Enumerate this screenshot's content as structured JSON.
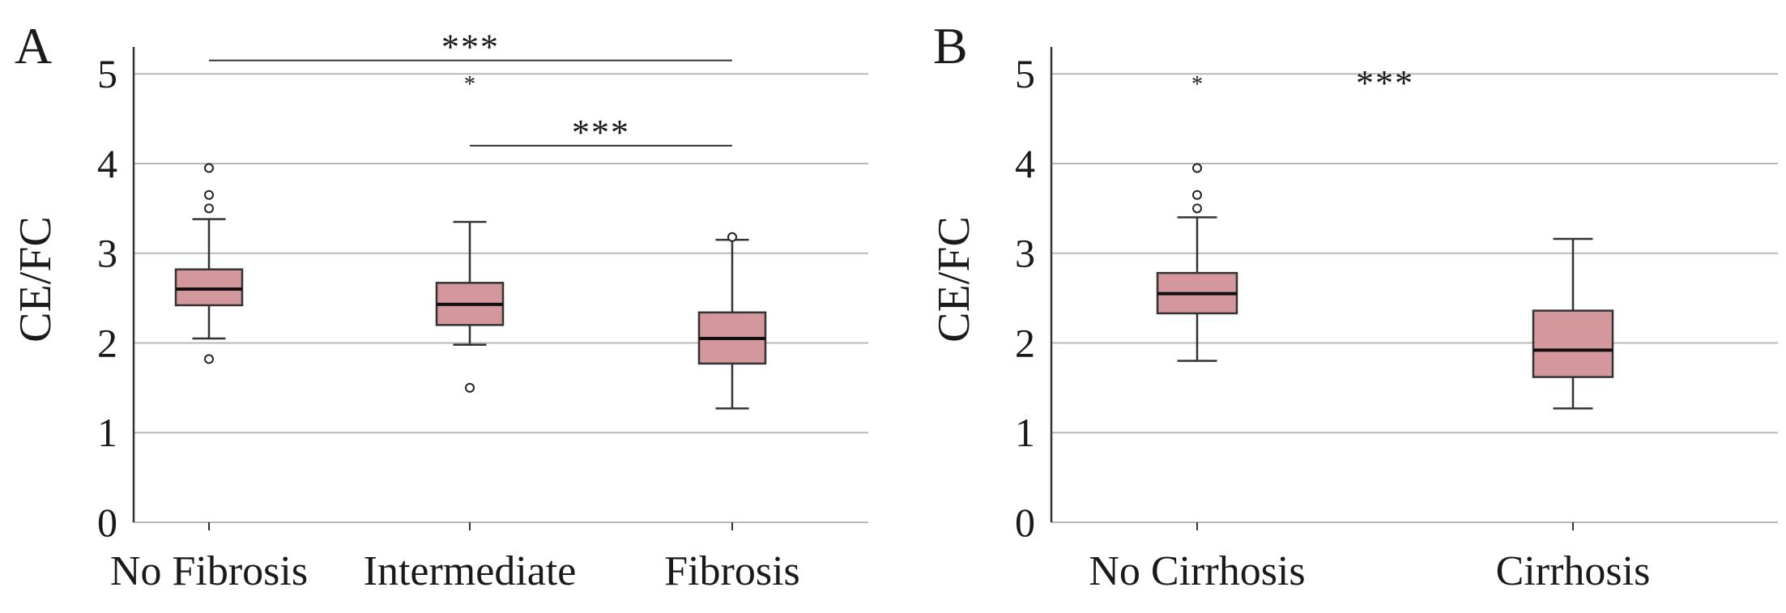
{
  "colors": {
    "box_fill": "#d4979b",
    "box_stroke": "#333333",
    "gridline": "#b8b8b8",
    "axis": "#333333"
  },
  "chart_data": [
    {
      "type": "boxplot",
      "panel_label": "A",
      "ylabel": "CE/FC",
      "xlabel": "",
      "ylim": [
        0,
        5.3
      ],
      "yticks": [
        0,
        1,
        2,
        3,
        4,
        5
      ],
      "grid": true,
      "categories": [
        "No Fibrosis",
        "Intermediate",
        "Fibrosis"
      ],
      "boxes": [
        {
          "category": "No Fibrosis",
          "whisker_low": 2.05,
          "q1": 2.42,
          "median": 2.6,
          "q3": 2.82,
          "whisker_high": 3.38,
          "outliers": [
            1.82,
            3.5,
            3.65,
            3.95
          ],
          "extremes": []
        },
        {
          "category": "Intermediate",
          "whisker_low": 1.98,
          "q1": 2.2,
          "median": 2.43,
          "q3": 2.67,
          "whisker_high": 3.35,
          "outliers": [
            1.5
          ],
          "extremes": [
            4.93
          ]
        },
        {
          "category": "Fibrosis",
          "whisker_low": 1.27,
          "q1": 1.77,
          "median": 2.05,
          "q3": 2.34,
          "whisker_high": 3.15,
          "outliers": [
            3.18
          ],
          "extremes": []
        }
      ],
      "significance": [
        {
          "from": "No Fibrosis",
          "to": "Fibrosis",
          "label": "***",
          "y": 5.15
        },
        {
          "from": "Intermediate",
          "to": "Fibrosis",
          "label": "***",
          "y": 4.2
        }
      ]
    },
    {
      "type": "boxplot",
      "panel_label": "B",
      "ylabel": "CE/FC",
      "xlabel": "",
      "ylim": [
        0,
        5.3
      ],
      "yticks": [
        0,
        1,
        2,
        3,
        4,
        5
      ],
      "grid": true,
      "categories": [
        "No Cirrhosis",
        "Cirrhosis"
      ],
      "boxes": [
        {
          "category": "No Cirrhosis",
          "whisker_low": 1.8,
          "q1": 2.33,
          "median": 2.55,
          "q3": 2.78,
          "whisker_high": 3.4,
          "outliers": [
            3.5,
            3.65,
            3.95
          ],
          "extremes": [
            4.93
          ]
        },
        {
          "category": "Cirrhosis",
          "whisker_low": 1.27,
          "q1": 1.62,
          "median": 1.92,
          "q3": 2.36,
          "whisker_high": 3.16,
          "outliers": [],
          "extremes": []
        }
      ],
      "significance": [
        {
          "from": "No Cirrhosis",
          "to": "Cirrhosis",
          "label": "***",
          "y": 4.75,
          "line": false
        }
      ]
    }
  ]
}
